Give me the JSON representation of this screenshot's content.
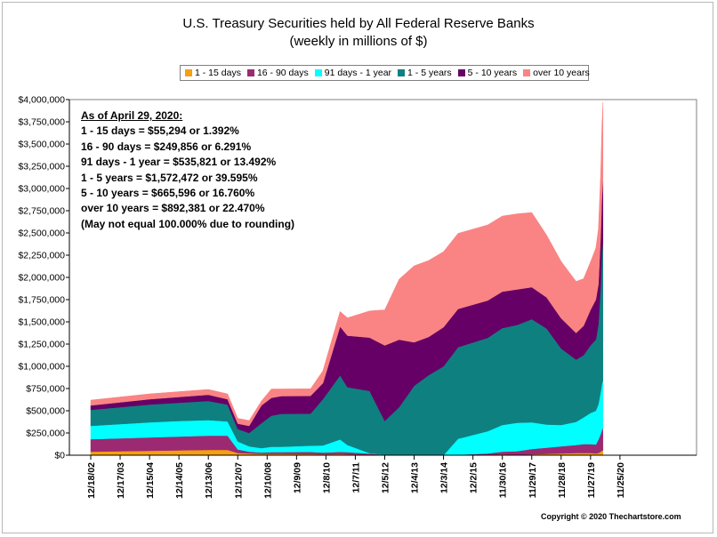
{
  "chart_data": {
    "type": "area",
    "stacked": true,
    "title": "U.S. Treasury Securities held by All Federal Reserve Banks",
    "subtitle": "(weekly in millions of $)",
    "x_ticks": [
      "12/18/02",
      "12/17/03",
      "12/15/04",
      "12/14/05",
      "12/13/06",
      "12/12/07",
      "12/10/08",
      "12/9/09",
      "12/8/10",
      "12/7/11",
      "12/5/12",
      "12/4/13",
      "12/3/14",
      "12/2/15",
      "11/30/16",
      "11/29/17",
      "11/28/18",
      "11/27/19",
      "11/25/20"
    ],
    "y_ticks": [
      "$0",
      "$250,000",
      "$500,000",
      "$750,000",
      "$1,000,000",
      "$1,250,000",
      "$1,500,000",
      "$1,750,000",
      "$2,000,000",
      "$2,250,000",
      "$2,500,000",
      "$2,750,000",
      "$3,000,000",
      "$3,250,000",
      "$3,500,000",
      "$3,750,000",
      "$4,000,000"
    ],
    "ylim": [
      0,
      4000000
    ],
    "x_dates": [
      "2002-12-18",
      "2003-12-17",
      "2004-12-15",
      "2005-12-14",
      "2006-12-13",
      "2007-08-08",
      "2007-12-12",
      "2008-05-01",
      "2008-10-01",
      "2009-02-01",
      "2009-06-01",
      "2010-06-01",
      "2010-11-01",
      "2011-06-01",
      "2011-09-01",
      "2012-06-01",
      "2012-12-05",
      "2013-06-01",
      "2013-12-04",
      "2014-06-01",
      "2014-12-03",
      "2015-06-01",
      "2016-06-01",
      "2016-11-30",
      "2017-06-01",
      "2017-11-29",
      "2018-06-01",
      "2018-11-28",
      "2019-06-01",
      "2019-09-01",
      "2019-11-27",
      "2020-02-01",
      "2020-03-04",
      "2020-04-01",
      "2020-04-15",
      "2020-04-29"
    ],
    "series": [
      {
        "name": "1 - 15 days",
        "color": "#f5a010",
        "values": [
          40000,
          45000,
          50000,
          55000,
          60000,
          60000,
          25000,
          20000,
          15000,
          15000,
          15000,
          12000,
          10000,
          12000,
          10000,
          8000,
          0,
          0,
          0,
          0,
          0,
          0,
          5000,
          10000,
          5000,
          10000,
          15000,
          20000,
          25000,
          25000,
          25000,
          20000,
          25000,
          40000,
          50000,
          55294
        ]
      },
      {
        "name": "16 - 90 days",
        "color": "#9b2a72",
        "values": [
          140000,
          145000,
          150000,
          155000,
          160000,
          160000,
          40000,
          20000,
          15000,
          20000,
          20000,
          25000,
          20000,
          25000,
          25000,
          10000,
          5000,
          0,
          0,
          0,
          0,
          5000,
          15000,
          30000,
          40000,
          60000,
          70000,
          80000,
          90000,
          100000,
          100000,
          100000,
          150000,
          200000,
          230000,
          249856
        ]
      },
      {
        "name": "91 days - 1 year",
        "color": "#00ffff",
        "values": [
          150000,
          160000,
          170000,
          175000,
          175000,
          160000,
          90000,
          60000,
          50000,
          60000,
          60000,
          70000,
          80000,
          140000,
          80000,
          5000,
          0,
          0,
          0,
          0,
          0,
          180000,
          250000,
          300000,
          320000,
          300000,
          260000,
          240000,
          260000,
          300000,
          350000,
          380000,
          400000,
          480000,
          520000,
          535821
        ]
      },
      {
        "name": "1 - 5 years",
        "color": "#0f8080",
        "values": [
          180000,
          190000,
          200000,
          205000,
          215000,
          190000,
          140000,
          150000,
          280000,
          350000,
          370000,
          360000,
          520000,
          720000,
          650000,
          700000,
          380000,
          540000,
          780000,
          900000,
          1000000,
          1030000,
          1050000,
          1090000,
          1100000,
          1160000,
          1080000,
          860000,
          700000,
          700000,
          760000,
          800000,
          900000,
          1200000,
          1450000,
          1572472
        ]
      },
      {
        "name": "5 - 10 years",
        "color": "#660066",
        "values": [
          50000,
          55000,
          60000,
          65000,
          70000,
          60000,
          60000,
          80000,
          200000,
          200000,
          200000,
          200000,
          180000,
          550000,
          580000,
          600000,
          850000,
          760000,
          490000,
          430000,
          440000,
          430000,
          420000,
          410000,
          400000,
          360000,
          350000,
          340000,
          300000,
          330000,
          400000,
          450000,
          450000,
          560000,
          640000,
          665596
        ]
      },
      {
        "name": "over 10 years",
        "color": "#fa8484",
        "values": [
          60000,
          60000,
          60000,
          60000,
          60000,
          60000,
          60000,
          60000,
          50000,
          100000,
          80000,
          80000,
          140000,
          170000,
          200000,
          300000,
          400000,
          680000,
          860000,
          860000,
          850000,
          850000,
          850000,
          850000,
          850000,
          840000,
          700000,
          640000,
          580000,
          530000,
          540000,
          580000,
          620000,
          700000,
          800000,
          892381
        ]
      }
    ]
  },
  "legend": {
    "items": [
      "1 - 15 days",
      "16 - 90 days",
      "91 days - 1 year",
      "1 - 5 years",
      "5 - 10 years",
      "over 10 years"
    ]
  },
  "annotation": {
    "heading": "As of April 29, 2020:",
    "lines": [
      "1 - 15 days = $55,294 or 1.392%",
      "16 - 90 days = $249,856 or 6.291%",
      "91 days - 1 year = $535,821 or 13.492%",
      "1 - 5 years = $1,572,472 or 39.595%",
      "5 - 10 years = $665,596 or 16.760%",
      "over 10 years = $892,381 or 22.470%",
      "(May not equal 100.000% due to rounding)"
    ]
  },
  "copyright": "Copyright © 2020 Thechartstore.com"
}
